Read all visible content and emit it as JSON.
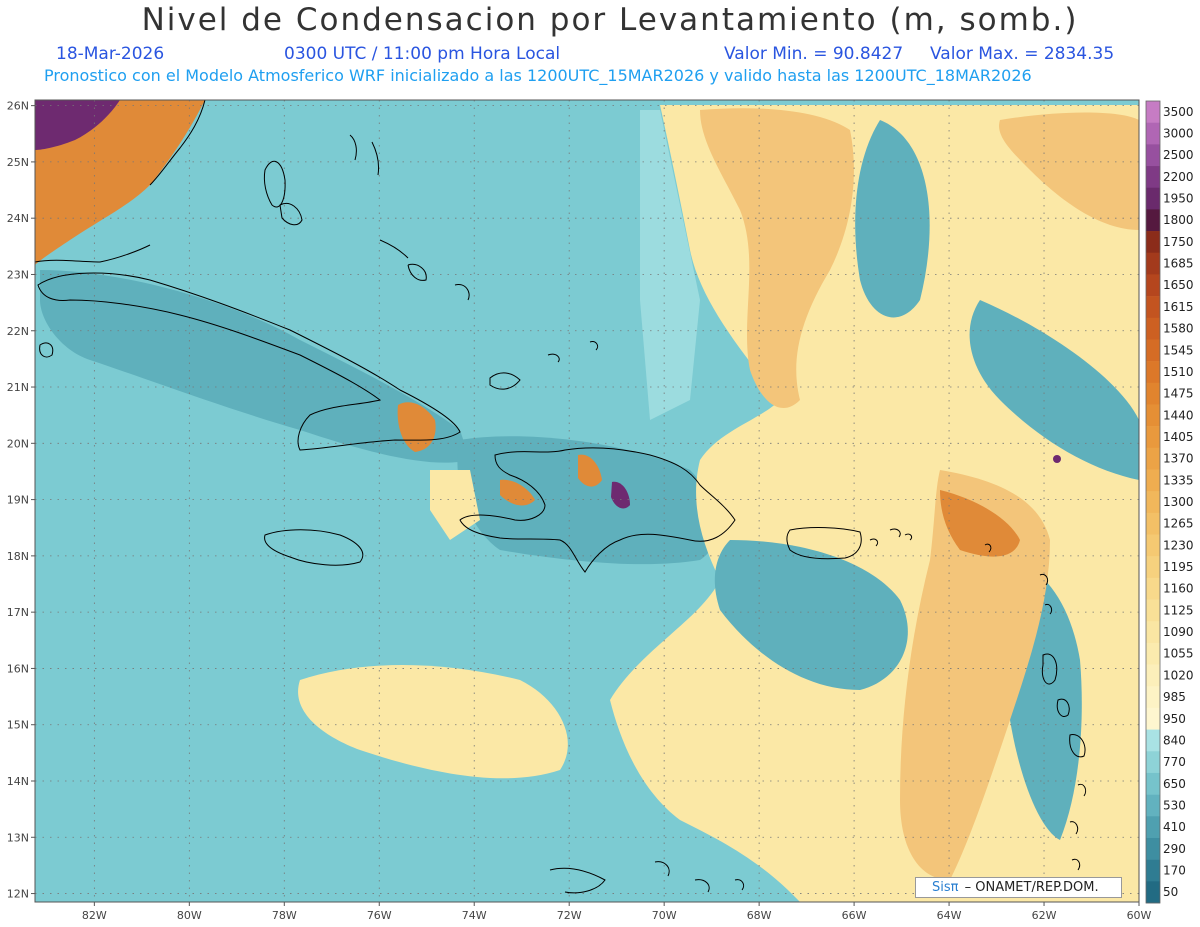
{
  "header": {
    "title": "Nivel de Condensacion por Levantamiento (m, somb.)",
    "date": "18-Mar-2026",
    "time": "0300 UTC / 11:00 pm Hora Local",
    "min_label": "Valor Min. = 90.8427",
    "max_label": "Valor Max. = 2834.35",
    "model_line": "Pronostico con el Modelo Atmosferico WRF inicializado a las 1200UTC_15MAR2026 y valido hasta las  1200UTC_18MAR2026"
  },
  "map": {
    "lat_labels": [
      "26N",
      "25N",
      "24N",
      "23N",
      "22N",
      "21N",
      "20N",
      "19N",
      "18N",
      "17N",
      "16N",
      "15N",
      "14N",
      "13N",
      "12N"
    ],
    "lon_labels": [
      "82W",
      "80W",
      "78W",
      "76W",
      "74W",
      "72W",
      "70W",
      "68W",
      "66W",
      "64W",
      "62W",
      "60W"
    ],
    "lon_range": [
      -83.25,
      -60
    ],
    "lat_range": [
      11.85,
      26.1
    ]
  },
  "colorbar": {
    "levels": [
      "3500",
      "3000",
      "2500",
      "2200",
      "1950",
      "1800",
      "1750",
      "1685",
      "1650",
      "1615",
      "1580",
      "1545",
      "1510",
      "1475",
      "1440",
      "1405",
      "1370",
      "1335",
      "1300",
      "1265",
      "1230",
      "1195",
      "1160",
      "1125",
      "1090",
      "1055",
      "1020",
      "985",
      "950",
      "840",
      "770",
      "650",
      "530",
      "410",
      "290",
      "170",
      "50"
    ],
    "colors": [
      "#c67cc4",
      "#b066b4",
      "#97509f",
      "#7f3a85",
      "#6a2a6c",
      "#55193f",
      "#8b2c1a",
      "#a33a1c",
      "#b5461e",
      "#c35420",
      "#cd6022",
      "#d56c25",
      "#dc7829",
      "#e1842e",
      "#e58f35",
      "#e9993d",
      "#eca346",
      "#efad50",
      "#f1b75b",
      "#f3c066",
      "#f5c972",
      "#f6d17e",
      "#f8d98b",
      "#f9e097",
      "#fae6a3",
      "#fbebae",
      "#fcefba",
      "#fdf3c5",
      "#fef6cf",
      "#a9e2e4",
      "#8ed3d7",
      "#76c3cb",
      "#62b2bf",
      "#4fa0b0",
      "#3e8ea1",
      "#2f7c92",
      "#226b83"
    ]
  },
  "credit": {
    "logo": "Sisπ",
    "org": "– ONAMET/REP.DOM."
  },
  "colors": {
    "sea": "#7ccbd2",
    "sea_dark": "#5fb0bc",
    "sea_light": "#a9e2e4",
    "dry": "#fbe8a6",
    "warm": "#f3c57a",
    "orange": "#e08a38",
    "purple": "#6e2a70",
    "coast": "#000000",
    "grid": "#777777"
  }
}
